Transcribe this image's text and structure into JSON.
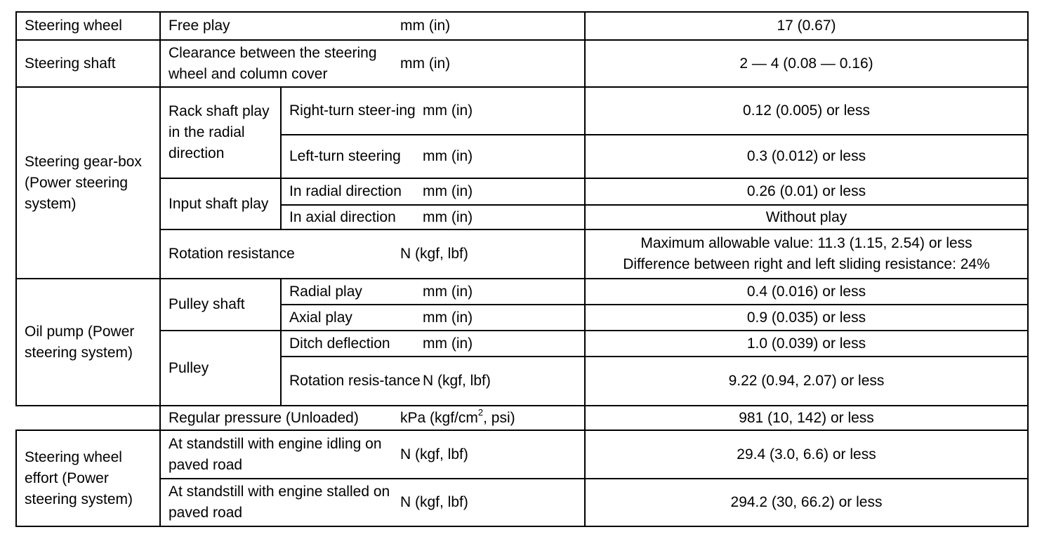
{
  "rows": {
    "steering_wheel": {
      "group": "Steering wheel",
      "item": "Free play",
      "unit": "mm (in)",
      "value": "17 (0.67)"
    },
    "steering_shaft": {
      "group": "Steering shaft",
      "item": "Clearance between the steering wheel and column cover",
      "unit": "mm (in)",
      "value": "2 — 4 (0.08 — 0.16)"
    },
    "gearbox": {
      "group": "Steering gear-box (Power steering system)",
      "rack": "Rack shaft play in the radial direction",
      "right_turn": "Right-turn steer-ing",
      "right_turn_unit": "mm (in)",
      "right_turn_value": "0.12 (0.005) or less",
      "left_turn": "Left-turn steering",
      "left_turn_unit": "mm (in)",
      "left_turn_value": "0.3 (0.012) or less",
      "input": "Input shaft play",
      "input_radial": "In radial direction",
      "input_radial_unit": "mm (in)",
      "input_radial_value": "0.26 (0.01) or less",
      "input_axial": "In axial direction",
      "input_axial_unit": "mm (in)",
      "input_axial_value": "Without play",
      "rotation": "Rotation resistance",
      "rotation_unit": "N (kgf, lbf)",
      "rotation_value_1": "Maximum allowable value: 11.3 (1.15, 2.54) or less",
      "rotation_value_2": "Difference between right and left sliding resistance: 24%"
    },
    "oil_pump": {
      "group": "Oil pump (Power steering system)",
      "pulley_shaft": "Pulley shaft",
      "radial_play": "Radial play",
      "radial_play_unit": "mm (in)",
      "radial_play_value": "0.4 (0.016) or less",
      "axial_play": "Axial play",
      "axial_play_unit": "mm (in)",
      "axial_play_value": "0.9 (0.035) or less",
      "pulley": "Pulley",
      "ditch": "Ditch deflection",
      "ditch_unit": "mm (in)",
      "ditch_value": "1.0 (0.039) or less",
      "pulley_rotation": "Rotation resis-tance",
      "pulley_rotation_unit": "N (kgf, lbf)",
      "pulley_rotation_value": "9.22 (0.94, 2.07) or less",
      "pressure": "Regular pressure (Unloaded)",
      "pressure_unit_pre": "kPa (kgf/cm",
      "pressure_unit_sup": "2",
      "pressure_unit_post": ", psi)",
      "pressure_value": "981 (10, 142) or less"
    },
    "effort": {
      "group": "Steering wheel effort (Power steering system)",
      "idling": "At standstill with engine idling on paved road",
      "idling_unit": "N (kgf, lbf)",
      "idling_value": "29.4 (3.0, 6.6) or less",
      "stalled": "At standstill with engine stalled on paved road",
      "stalled_unit": "N (kgf, lbf)",
      "stalled_value": "294.2 (30, 66.2) or less"
    }
  }
}
